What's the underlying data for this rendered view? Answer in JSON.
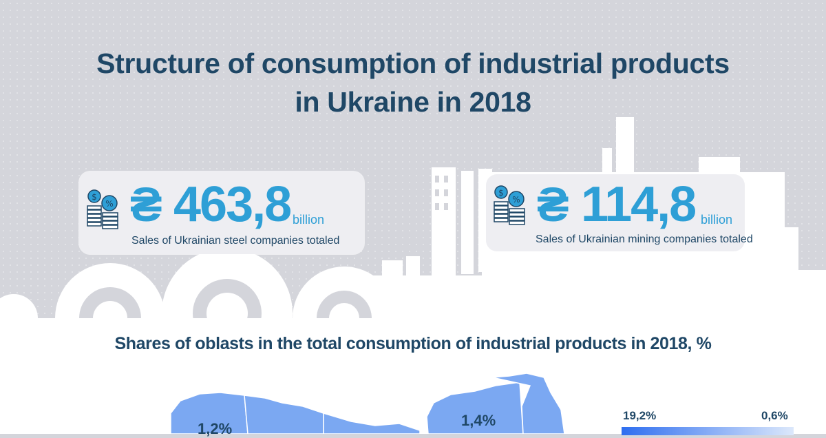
{
  "title": {
    "line1": "Structure of consumption of industrial products",
    "line2": "in Ukraine in 2018"
  },
  "cards": [
    {
      "currency": "₴",
      "amount": "463,8",
      "unit": "billion",
      "description": "Sales of Ukrainian steel companies totaled",
      "icon": "money-coins-icon"
    },
    {
      "currency": "₴",
      "amount": "114,8",
      "unit": "billion",
      "description": "Sales of Ukrainian mining companies totaled",
      "icon": "money-coins-icon"
    }
  ],
  "map_section": {
    "subtitle": "Shares of oblasts in the total consumption of industrial products in 2018, %",
    "labels": [
      "1,2%",
      "1,4%"
    ],
    "legend": {
      "max": "19,2%",
      "min": "0,6%"
    }
  },
  "colors": {
    "title": "#1f4766",
    "accent": "#2e9fd6",
    "map_fill": "#7ba8f2",
    "background": "#d4d5db"
  }
}
